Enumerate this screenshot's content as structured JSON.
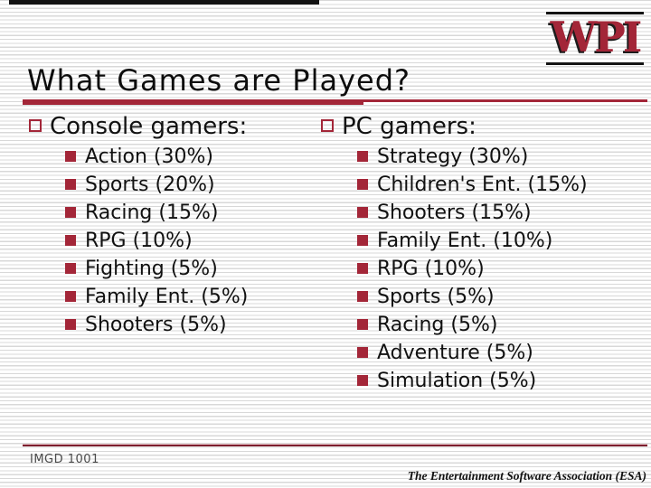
{
  "slide": {
    "title": "What Games are Played?",
    "logo_text": "WPI",
    "columns": [
      {
        "heading": "Console gamers:",
        "items": [
          "Action (30%)",
          "Sports (20%)",
          "Racing (15%)",
          "RPG (10%)",
          "Fighting (5%)",
          "Family Ent. (5%)",
          "Shooters (5%)"
        ]
      },
      {
        "heading": "PC gamers:",
        "items": [
          "Strategy (30%)",
          "Children's Ent. (15%)",
          "Shooters (15%)",
          "Family Ent. (10%)",
          "RPG (10%)",
          "Sports (5%)",
          "Racing (5%)",
          "Adventure (5%)",
          "Simulation (5%)"
        ]
      }
    ],
    "footer": {
      "course": "IMGD 1001",
      "source": "The Entertainment Software Association (ESA)"
    },
    "colors": {
      "crimson": "#A32638",
      "stripe_gray": "#D8D8D8",
      "black_accent": "#141414"
    },
    "icons": {
      "level1_bullet": "hollow-square",
      "level2_bullet": "filled-square"
    }
  }
}
